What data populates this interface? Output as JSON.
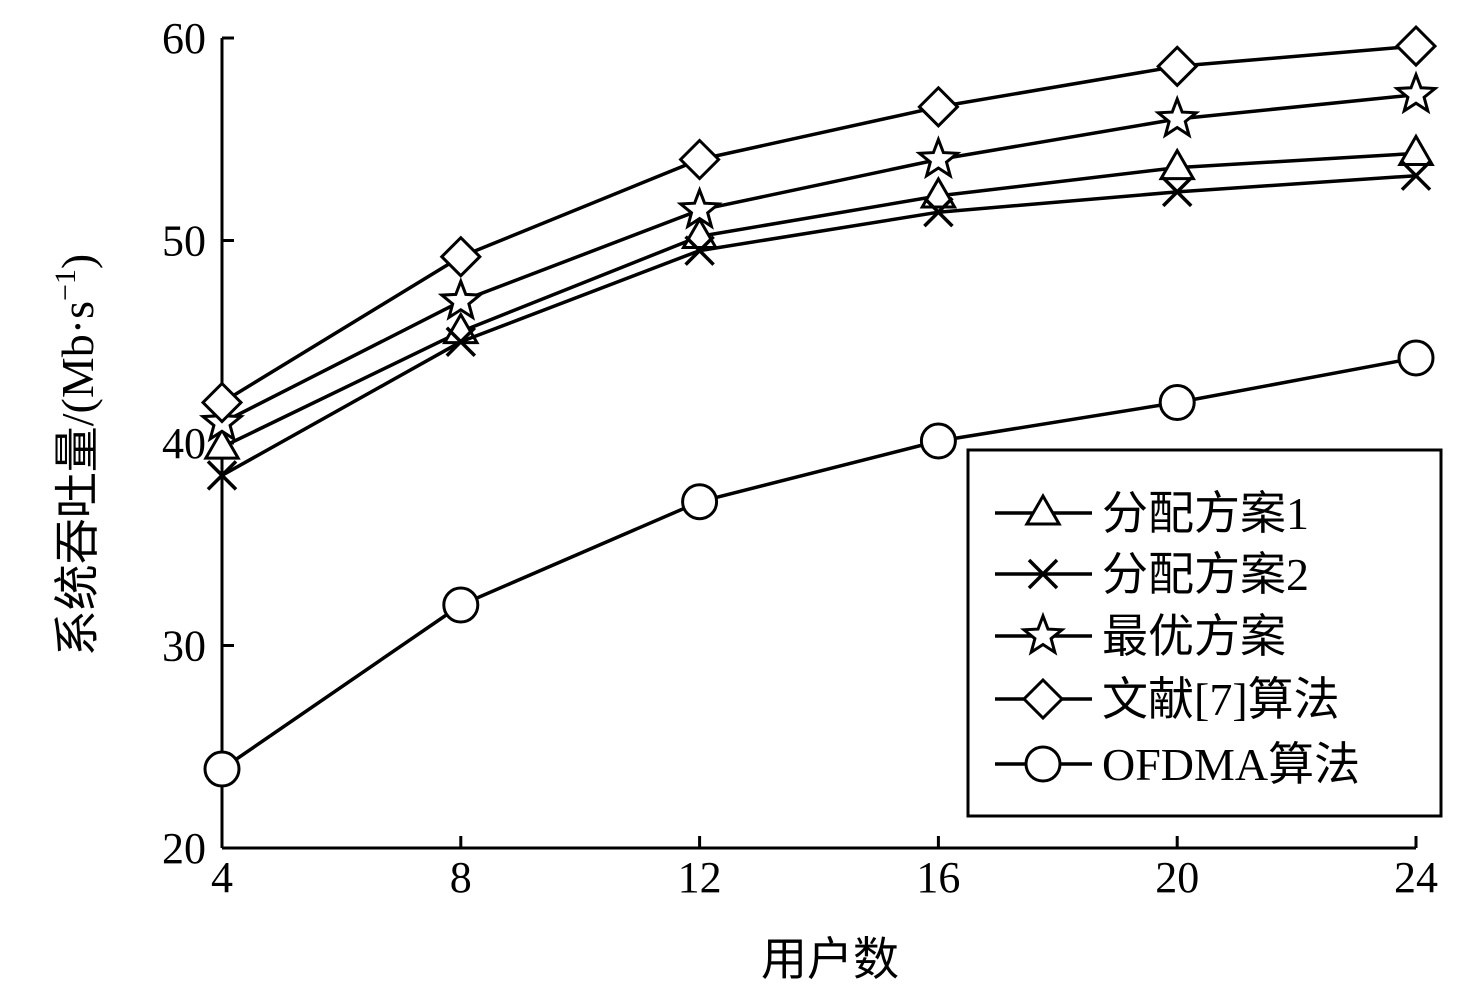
{
  "chart_data": {
    "type": "line",
    "xlabel": "用户数",
    "ylabel_main": "系统吞吐量/(Mb·s",
    "ylabel_sup": "−1",
    "ylabel_close": ")",
    "x": [
      4,
      8,
      12,
      16,
      20,
      24
    ],
    "xticks": [
      "4",
      "8",
      "12",
      "16",
      "20",
      "24"
    ],
    "yticks": [
      "20",
      "30",
      "40",
      "50",
      "60"
    ],
    "xlim": [
      4,
      24
    ],
    "ylim": [
      20,
      60
    ],
    "grid": false,
    "legend_position": "lower-right",
    "series": [
      {
        "name": "分配方案1",
        "marker": "triangle",
        "values": [
          39.8,
          45.5,
          50.2,
          52.2,
          53.6,
          54.3
        ]
      },
      {
        "name": "分配方案2",
        "marker": "x",
        "values": [
          38.4,
          45.0,
          49.5,
          51.4,
          52.4,
          53.2
        ]
      },
      {
        "name": "最优方案",
        "marker": "star",
        "values": [
          41.0,
          47.0,
          51.5,
          54.0,
          56.0,
          57.2
        ]
      },
      {
        "name": "文献[7]算法",
        "marker": "diamond",
        "values": [
          42.0,
          49.2,
          54.0,
          56.6,
          58.6,
          59.6
        ]
      },
      {
        "name": "OFDMA算法",
        "marker": "circle",
        "values": [
          23.9,
          32.0,
          37.1,
          40.1,
          42.0,
          44.2
        ]
      }
    ]
  }
}
